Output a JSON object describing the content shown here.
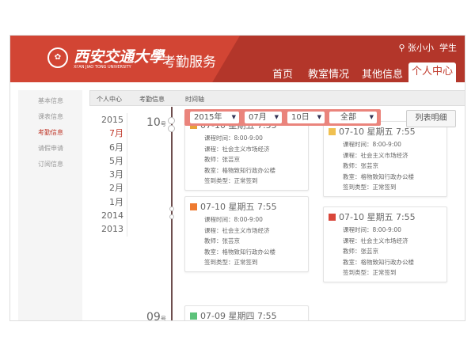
{
  "header": {
    "university_cn": "西安交通大學",
    "university_en": "XI'AN JIAO TONG UNIVERSITY",
    "app_title": "考勤服务",
    "user": "张小小",
    "role": "学生",
    "nav": [
      "首页",
      "教室情况",
      "其他信息",
      "个人中心"
    ]
  },
  "sidebar": [
    "基本信息",
    "课表信息",
    "考勤信息",
    "请假申请",
    "订阅信息"
  ],
  "breadcrumb": [
    "个人中心",
    "考勤信息",
    "时间轴"
  ],
  "years": [
    "2015",
    "7月",
    "6月",
    "5月",
    "3月",
    "2月",
    "1月",
    "2014",
    "2013"
  ],
  "filter": {
    "year": "2015年",
    "month": "07月",
    "day": "10日",
    "type": "全部",
    "list_button": "列表明细"
  },
  "days": [
    {
      "num": "10",
      "unit": "号"
    },
    {
      "num": "09",
      "unit": "号"
    }
  ],
  "labels": {
    "time": "课程时间：",
    "course": "课程：",
    "teacher": "教师：",
    "room": "教室：",
    "type": "签到类型："
  },
  "cards": [
    {
      "title": "07-10 星期五 7:55",
      "time": "8:00-9:00",
      "course": "社会主义市场经济",
      "teacher": "张芸京",
      "room": "格物致知行政办公楼",
      "type": "正常签到",
      "color": "#e8a33a"
    },
    {
      "title": "07-10 星期五 7:55",
      "time": "8:00-9:00",
      "course": "社会主义市场经济",
      "teacher": "张芸京",
      "room": "格物致知行政办公楼",
      "type": "正常签到",
      "color": "#f0c050"
    },
    {
      "title": "07-10 星期五 7:55",
      "time": "8:00-9:00",
      "course": "社会主义市场经济",
      "teacher": "张芸京",
      "room": "格物致知行政办公楼",
      "type": "正常签到",
      "color": "#ee7a30"
    },
    {
      "title": "07-10 星期五 7:55",
      "time": "8:00-9:00",
      "course": "社会主义市场经济",
      "teacher": "张芸京",
      "room": "格物致知行政办公楼",
      "type": "正常签到",
      "color": "#d9463a"
    },
    {
      "title": "07-09 星期四 7:55",
      "color": "#5cc27a"
    }
  ],
  "colors": {
    "brand": "#b3362a",
    "filter": "#ea847c"
  }
}
